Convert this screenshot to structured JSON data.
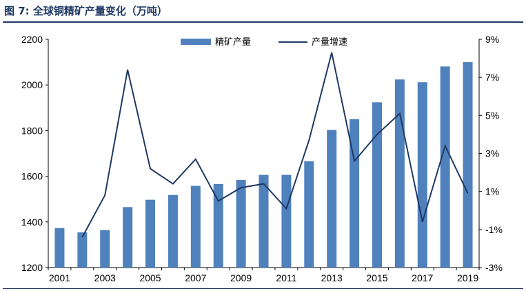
{
  "figure": {
    "label": "图 7:",
    "title": "全球铜精矿产量变化（万吨）"
  },
  "chart_data": {
    "type": "bar+line",
    "categories": [
      "2001",
      "2002",
      "2003",
      "2004",
      "2005",
      "2006",
      "2007",
      "2008",
      "2009",
      "2010",
      "2011",
      "2012",
      "2013",
      "2014",
      "2015",
      "2016",
      "2017",
      "2018",
      "2019"
    ],
    "x_tick_labels": [
      "2001",
      "2003",
      "2005",
      "2007",
      "2009",
      "2011",
      "2013",
      "2015",
      "2017",
      "2019"
    ],
    "series": [
      {
        "name": "精矿产量",
        "type": "bar",
        "axis": "left",
        "color": "#4f81bd",
        "values": [
          1373,
          1354,
          1364,
          1465,
          1497,
          1518,
          1558,
          1566,
          1584,
          1606,
          1606,
          1666,
          1803,
          1850,
          1924,
          2024,
          2012,
          2081,
          2100
        ]
      },
      {
        "name": "产量增速",
        "type": "line",
        "axis": "right",
        "color": "#1f3864",
        "unit": "%",
        "values": [
          null,
          -1.4,
          0.8,
          7.4,
          2.2,
          1.4,
          2.7,
          0.5,
          1.2,
          1.4,
          0.1,
          3.7,
          8.3,
          2.6,
          4.0,
          5.1,
          -0.6,
          3.4,
          0.9
        ]
      }
    ],
    "y_left": {
      "min": 1200,
      "max": 2200,
      "ticks": [
        1200,
        1400,
        1600,
        1800,
        2000,
        2200
      ]
    },
    "y_right": {
      "min": -3,
      "max": 9,
      "ticks": [
        -3,
        -1,
        1,
        3,
        5,
        7,
        9
      ],
      "tick_labels": [
        "-3%",
        "-1%",
        "1%",
        "3%",
        "5%",
        "7%",
        "9%"
      ]
    },
    "legend_position": "top-center",
    "grid": false
  }
}
